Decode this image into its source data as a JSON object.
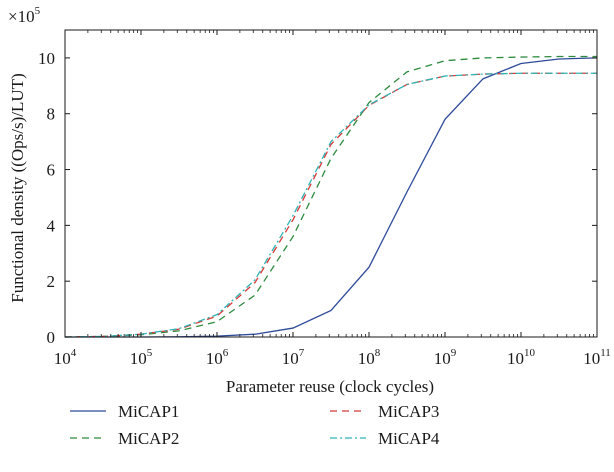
{
  "chart_data": {
    "type": "line",
    "xlabel": "Parameter reuse (clock cycles)",
    "ylabel": "Functional density ((Ops/s)/LUT)",
    "y_multiplier": {
      "base": "×10",
      "exp": "5"
    },
    "x_scale": "log",
    "xlim": [
      10000,
      100000000000
    ],
    "ylim": [
      0,
      1100000
    ],
    "x_ticks": [
      {
        "base": "10",
        "exp": "4",
        "value": 10000
      },
      {
        "base": "10",
        "exp": "5",
        "value": 100000
      },
      {
        "base": "10",
        "exp": "6",
        "value": 1000000
      },
      {
        "base": "10",
        "exp": "7",
        "value": 10000000
      },
      {
        "base": "10",
        "exp": "8",
        "value": 100000000
      },
      {
        "base": "10",
        "exp": "9",
        "value": 1000000000
      },
      {
        "base": "10",
        "exp": "10",
        "value": 10000000000
      },
      {
        "base": "10",
        "exp": "11",
        "value": 100000000000
      }
    ],
    "y_ticks": [
      {
        "label": "0",
        "value": 0
      },
      {
        "label": "2",
        "value": 200000
      },
      {
        "label": "4",
        "value": 400000
      },
      {
        "label": "6",
        "value": 600000
      },
      {
        "label": "8",
        "value": 800000
      },
      {
        "label": "10",
        "value": 1000000
      }
    ],
    "grid": false,
    "legend_position": "below",
    "x": [
      10000,
      31623,
      100000,
      316228,
      1000000,
      3162278,
      10000000,
      31622777,
      100000000,
      316227766,
      1000000000,
      3162277660,
      10000000000,
      31622776602,
      100000000000
    ],
    "series": [
      {
        "name": "MiCAP1",
        "color": "#2e4a9a",
        "dash": "solid",
        "values": [
          0,
          0,
          0,
          1000,
          3000,
          10000,
          32000,
          95000,
          250000,
          520000,
          780000,
          925000,
          980000,
          996000,
          1000000
        ]
      },
      {
        "name": "MiCAP2",
        "color": "#2e8b3e",
        "dash": "dash",
        "values": [
          0,
          2000,
          8000,
          22000,
          55000,
          150000,
          360000,
          640000,
          840000,
          950000,
          990000,
          1000000,
          1003000,
          1005000,
          1005000
        ]
      },
      {
        "name": "MiCAP3",
        "color": "#d63a3a",
        "dash": "dash",
        "values": [
          0,
          2000,
          10000,
          28000,
          75000,
          195000,
          420000,
          690000,
          830000,
          905000,
          935000,
          942000,
          945000,
          945000,
          945000
        ]
      },
      {
        "name": "MiCAP4",
        "color": "#2fb3b3",
        "dash": "dashdot",
        "values": [
          0,
          2000,
          10000,
          30000,
          80000,
          205000,
          435000,
          700000,
          832000,
          905000,
          935000,
          942000,
          945000,
          945000,
          945000
        ]
      }
    ]
  }
}
